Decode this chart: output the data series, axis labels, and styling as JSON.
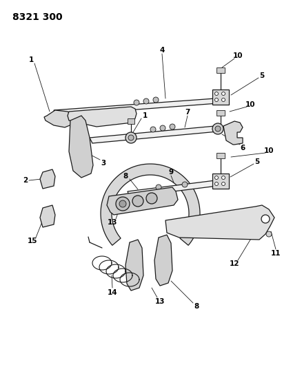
{
  "title": "8321 300",
  "bg_color": "#ffffff",
  "line_color": "#1a1a1a",
  "text_color": "#000000",
  "title_fontsize": 10,
  "label_fontsize": 7.5,
  "fig_width": 4.1,
  "fig_height": 5.33,
  "dpi": 100
}
